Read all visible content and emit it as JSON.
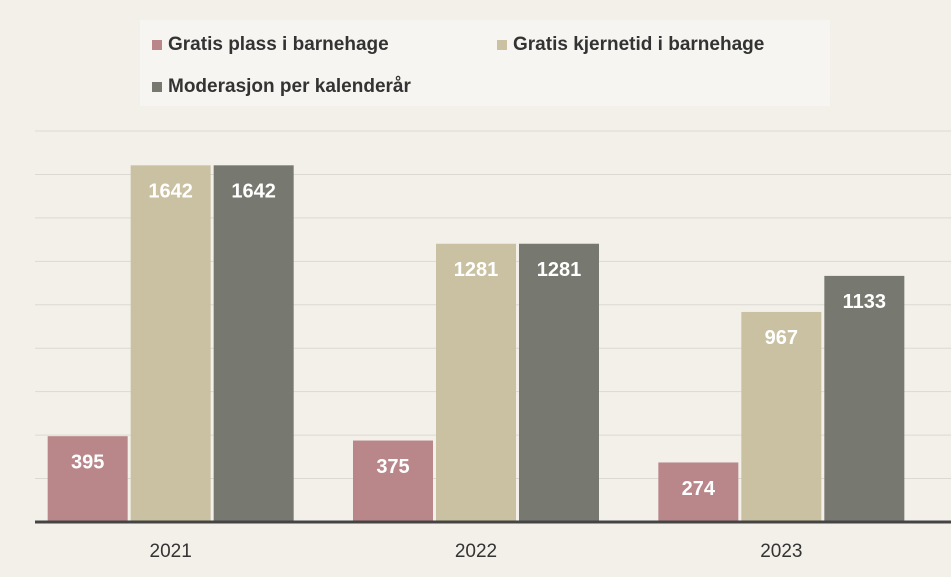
{
  "chart_data": {
    "type": "bar",
    "categories": [
      "2021",
      "2022",
      "2023"
    ],
    "series": [
      {
        "name": "Gratis plass i barnehage",
        "color": "#b9868a",
        "values": [
          395,
          375,
          274
        ]
      },
      {
        "name": "Gratis kjernetid i barnehage",
        "color": "#c9c1a1",
        "values": [
          1642,
          1281,
          967
        ]
      },
      {
        "name": "Moderasjon per kalenderår",
        "color": "#77786f",
        "values": [
          1642,
          1281,
          1133
        ]
      }
    ],
    "ylim": [
      0,
      1800
    ],
    "yticks": [
      0,
      200,
      400,
      600,
      800,
      1000,
      1200,
      1400,
      1600,
      1800
    ],
    "grid": true
  }
}
